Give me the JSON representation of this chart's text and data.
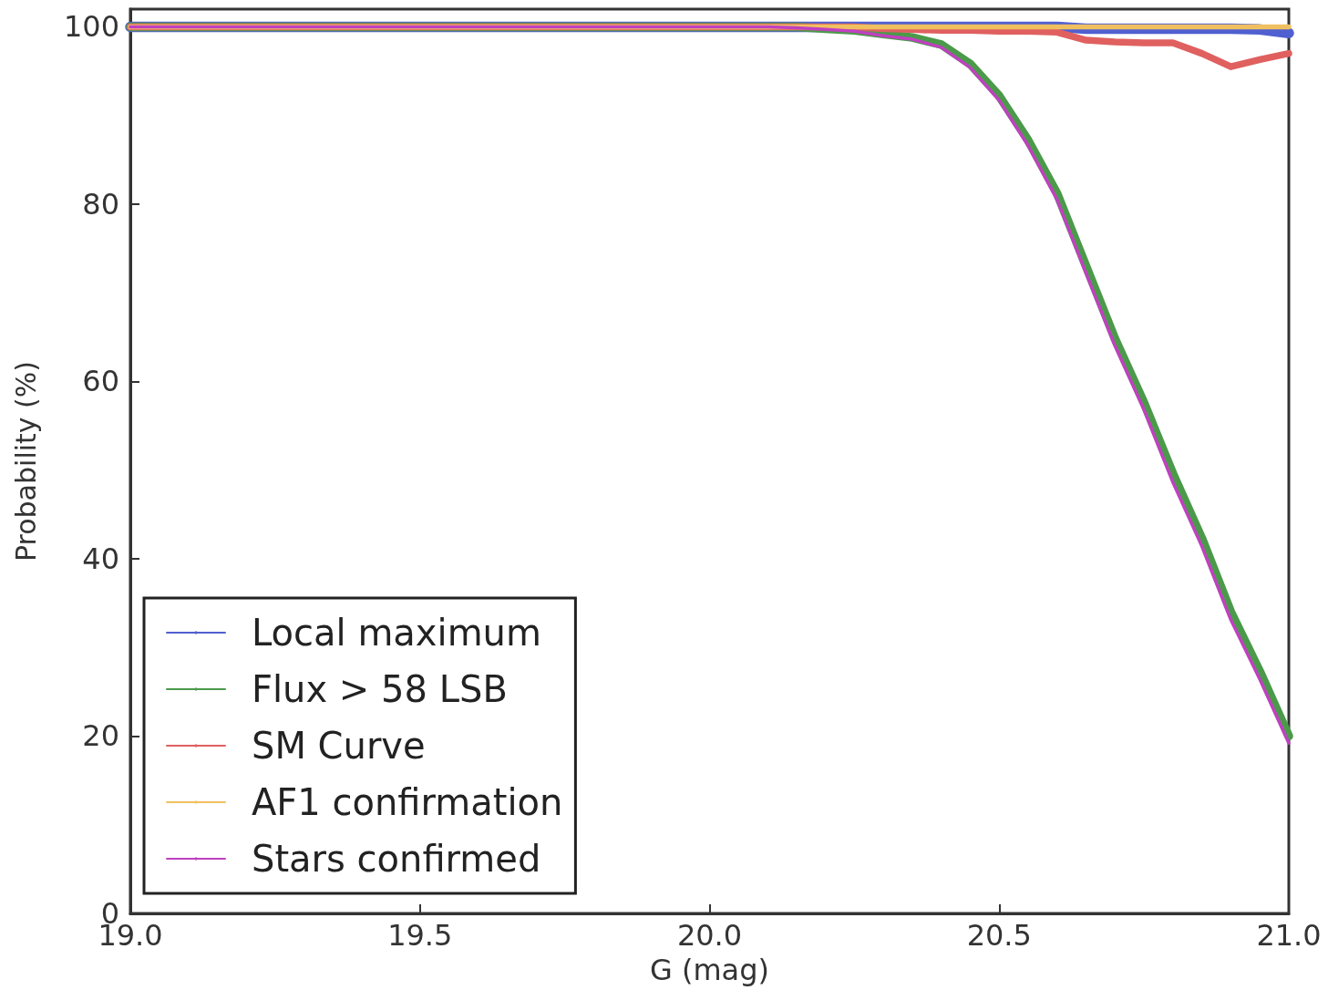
{
  "chart_data": {
    "type": "line",
    "xlabel": "G (mag)",
    "ylabel": "Probability (%)",
    "x": [
      19.0,
      19.5,
      20.0,
      20.1,
      20.15,
      20.2,
      20.25,
      20.3,
      20.35,
      20.4,
      20.45,
      20.5,
      20.55,
      20.6,
      20.65,
      20.7,
      20.75,
      20.8,
      20.85,
      20.9,
      20.95,
      21.0
    ],
    "series": [
      {
        "name": "Local maximum",
        "color": "#5060d0",
        "values": [
          100,
          100,
          100,
          100,
          100,
          100,
          100,
          100,
          100,
          100,
          100,
          100,
          100,
          100,
          99.8,
          99.8,
          99.8,
          99.8,
          99.8,
          99.8,
          99.7,
          99.3
        ]
      },
      {
        "name": "Flux > 58 LSB",
        "color": "#4a9a4a",
        "values": [
          100,
          100,
          100,
          100,
          100,
          99.8,
          99.6,
          99.2,
          98.8,
          98,
          95.8,
          92.2,
          87.2,
          81.2,
          73,
          64.8,
          57.6,
          49.6,
          42.3,
          34,
          27.3,
          20
        ]
      },
      {
        "name": "SM Curve",
        "color": "#e06060",
        "values": [
          100,
          100,
          100,
          100,
          100,
          100,
          100,
          99.8,
          99.7,
          99.6,
          99.6,
          99.5,
          99.5,
          99.4,
          98.5,
          98.3,
          98.2,
          98.2,
          97,
          95.5,
          96.3,
          97
        ]
      },
      {
        "name": "AF1 confirmation",
        "color": "#f0c060",
        "values": [
          100,
          100,
          100,
          100,
          100,
          100,
          100,
          100,
          100,
          100,
          100,
          100,
          100,
          100,
          100,
          100,
          100,
          100,
          100,
          100,
          100,
          100
        ]
      },
      {
        "name": "Stars confirmed",
        "color": "#c040c0",
        "values": [
          100,
          100,
          100,
          100,
          99.9,
          99.7,
          99.5,
          99,
          98.6,
          97.7,
          95.4,
          91.7,
          86.6,
          80.5,
          72.2,
          64,
          56.8,
          48.6,
          41.4,
          33.1,
          26.4,
          19.2
        ]
      }
    ],
    "xlim": [
      19.0,
      21.0
    ],
    "xticks": [
      {
        "value": 19,
        "label": "19.0"
      },
      {
        "value": 19.5,
        "label": "19.5"
      },
      {
        "value": 20,
        "label": "20.0"
      },
      {
        "value": 20.5,
        "label": "20.5"
      },
      {
        "value": 21,
        "label": "21.0"
      }
    ],
    "ylim": [
      0,
      102
    ],
    "yticks": [
      0,
      20,
      40,
      60,
      80,
      100
    ],
    "grid": false,
    "legend": "bottom left",
    "marker": "none",
    "line_style": "solid"
  }
}
